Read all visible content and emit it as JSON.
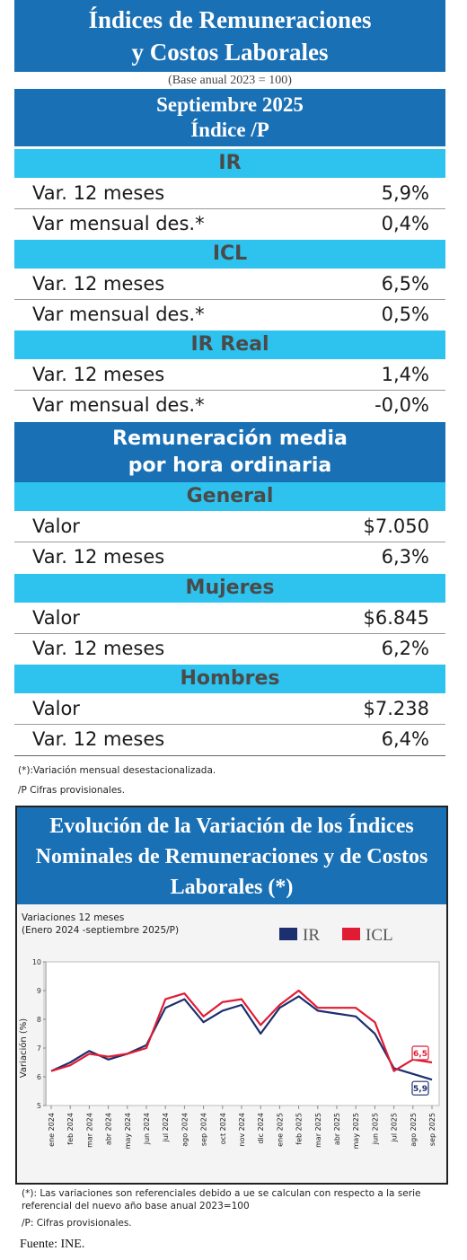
{
  "header": {
    "title_line1": "Índices de Remuneraciones",
    "title_line2": "y Costos Laborales",
    "base_note": "(Base anual 2023 = 100)",
    "period": "Septiembre 2025",
    "index_label": "Índice /P"
  },
  "ir": {
    "title": "IR",
    "rows": [
      {
        "label": "Var. 12 meses",
        "value": "5,9%"
      },
      {
        "label": "Var mensual des.*",
        "value": "0,4%"
      }
    ]
  },
  "icl": {
    "title": "ICL",
    "rows": [
      {
        "label": "Var. 12 meses",
        "value": "6,5%"
      },
      {
        "label": "Var mensual des.*",
        "value": "0,5%"
      }
    ]
  },
  "ir_real": {
    "title": "IR Real",
    "rows": [
      {
        "label": "Var. 12 meses",
        "value": "1,4%"
      },
      {
        "label": "Var mensual des.*",
        "value": "-0,0%"
      }
    ]
  },
  "remuneration": {
    "title_line1": "Remuneración media",
    "title_line2": "por hora ordinaria",
    "general": {
      "title": "General",
      "rows": [
        {
          "label": "Valor",
          "value": "$7.050"
        },
        {
          "label": "Var. 12 meses",
          "value": "6,3%"
        }
      ]
    },
    "mujeres": {
      "title": "Mujeres",
      "rows": [
        {
          "label": "Valor",
          "value": "$6.845"
        },
        {
          "label": "Var. 12 meses",
          "value": "6,2%"
        }
      ]
    },
    "hombres": {
      "title": "Hombres",
      "rows": [
        {
          "label": "Valor",
          "value": "$7.238"
        },
        {
          "label": "Var. 12 meses",
          "value": "6,4%"
        }
      ]
    }
  },
  "notes": {
    "note1": "(*):Variación mensual desestacionalizada.",
    "note2": "/P Cifras provisionales."
  },
  "chart_section": {
    "title_line1": "Evolución de la Variación de los Índices",
    "title_line2": "Nominales de Remuneraciones y de Costos",
    "title_line3": "Laborales (*)",
    "subtitle_line1": "Variaciones 12 meses",
    "subtitle_line2": "(Enero 2024 -septiembre 2025/P)"
  },
  "chart_data": {
    "type": "line",
    "ylabel": "Variación (%)",
    "ylim": [
      5,
      10
    ],
    "yticks": [
      5,
      6,
      7,
      8,
      9,
      10
    ],
    "grid": false,
    "legend_position": "top-right",
    "categories": [
      "ene 2024",
      "feb 2024",
      "mar 2024",
      "abr 2024",
      "may 2024",
      "jun 2024",
      "jul 2024",
      "ago 2024",
      "sep 2024",
      "oct 2024",
      "nov 2024",
      "dic 2024",
      "ene 2025",
      "feb 2025",
      "mar 2025",
      "abr 2025",
      "may 2025",
      "jun 2025",
      "jul 2025",
      "ago 2025",
      "sep 2025"
    ],
    "series": [
      {
        "name": "IR",
        "color": "#1c2f6e",
        "end_label": "5,9",
        "values": [
          6.2,
          6.5,
          6.9,
          6.6,
          6.8,
          7.1,
          8.4,
          8.7,
          7.9,
          8.3,
          8.5,
          7.5,
          8.4,
          8.8,
          8.3,
          8.2,
          8.1,
          7.5,
          6.3,
          6.1,
          5.9
        ]
      },
      {
        "name": "ICL",
        "color": "#e01b34",
        "end_label": "6,5",
        "values": [
          6.2,
          6.4,
          6.8,
          6.7,
          6.8,
          7.0,
          8.7,
          8.9,
          8.1,
          8.6,
          8.7,
          7.8,
          8.5,
          9.0,
          8.4,
          8.4,
          8.4,
          7.9,
          6.2,
          6.6,
          6.5
        ]
      }
    ]
  },
  "bottom_notes": {
    "line1": "(*): Las variaciones son referenciales debido a ue se calculan con respecto a la serie",
    "line2": "referencial del nuevo año base anual 2023=100",
    "line3": "/P: Cifras provisionales.",
    "source": "Fuente: INE."
  }
}
